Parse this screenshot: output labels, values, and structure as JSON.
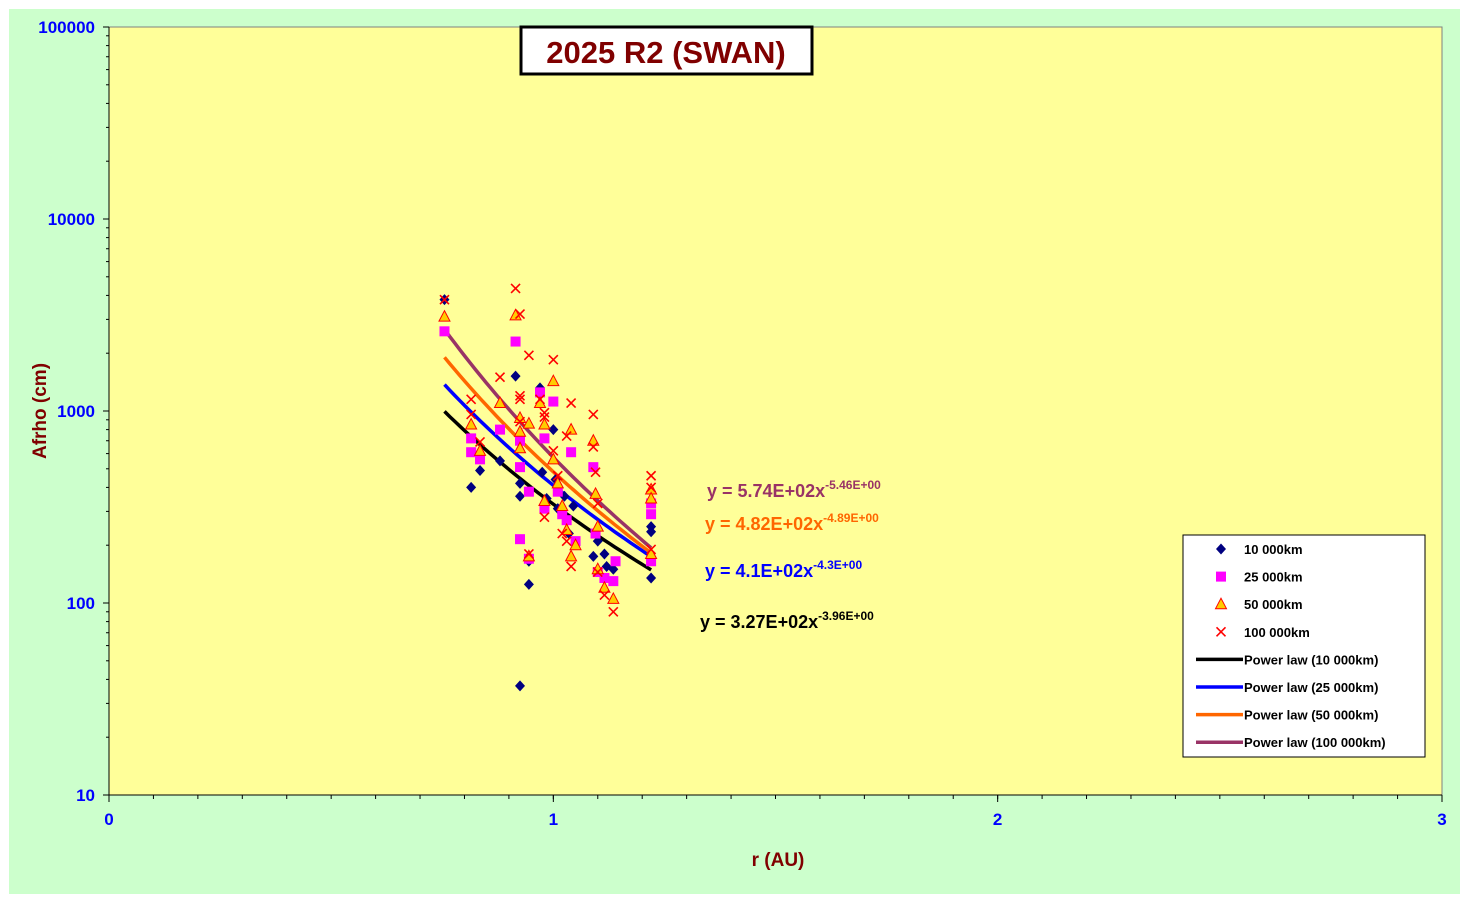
{
  "chart_data": {
    "type": "scatter",
    "title": "2025 R2 (SWAN)",
    "xlabel": "r (AU)",
    "ylabel": "Afrho (cm)",
    "xlim": [
      0,
      3
    ],
    "ylim": [
      10,
      100000
    ],
    "yscale": "log",
    "x_ticks": [
      "0",
      "1",
      "2",
      "3"
    ],
    "y_ticks": [
      "10",
      "100",
      "1000",
      "10000",
      "100000"
    ],
    "grid": false,
    "legend_position": "bottom-right",
    "colors": {
      "page_background": "#ccffcc",
      "plot_background": "#ffff99",
      "title_text": "#800000",
      "axis_label_text": "#800000",
      "tick_label_text": "#0000ff"
    },
    "series": [
      {
        "name": "10 000km",
        "marker": "diamond",
        "color": "#000080",
        "points": [
          [
            0.755,
            3800
          ],
          [
            0.815,
            400
          ],
          [
            0.835,
            490
          ],
          [
            0.88,
            550
          ],
          [
            0.915,
            1520
          ],
          [
            0.925,
            420
          ],
          [
            0.925,
            360
          ],
          [
            0.925,
            37
          ],
          [
            0.945,
            165
          ],
          [
            0.945,
            125
          ],
          [
            0.97,
            1320
          ],
          [
            0.975,
            480
          ],
          [
            0.985,
            350
          ],
          [
            1.0,
            800
          ],
          [
            1.005,
            440
          ],
          [
            1.01,
            310
          ],
          [
            1.025,
            360
          ],
          [
            1.035,
            230
          ],
          [
            1.045,
            320
          ],
          [
            1.09,
            175
          ],
          [
            1.1,
            210
          ],
          [
            1.115,
            180
          ],
          [
            1.12,
            155
          ],
          [
            1.135,
            150
          ],
          [
            1.22,
            250
          ],
          [
            1.22,
            235
          ],
          [
            1.22,
            135
          ]
        ]
      },
      {
        "name": "25 000km",
        "marker": "square",
        "color": "#ff00ff",
        "points": [
          [
            0.755,
            2600
          ],
          [
            0.815,
            720
          ],
          [
            0.815,
            610
          ],
          [
            0.835,
            560
          ],
          [
            0.88,
            800
          ],
          [
            0.915,
            2300
          ],
          [
            0.925,
            700
          ],
          [
            0.925,
            510
          ],
          [
            0.925,
            215
          ],
          [
            0.945,
            380
          ],
          [
            0.945,
            170
          ],
          [
            0.97,
            1250
          ],
          [
            0.98,
            720
          ],
          [
            0.98,
            310
          ],
          [
            1.0,
            1120
          ],
          [
            1.01,
            380
          ],
          [
            1.02,
            290
          ],
          [
            1.03,
            270
          ],
          [
            1.04,
            610
          ],
          [
            1.05,
            210
          ],
          [
            1.09,
            510
          ],
          [
            1.095,
            230
          ],
          [
            1.1,
            145
          ],
          [
            1.115,
            135
          ],
          [
            1.135,
            130
          ],
          [
            1.14,
            165
          ],
          [
            1.22,
            330
          ],
          [
            1.22,
            290
          ],
          [
            1.22,
            165
          ]
        ]
      },
      {
        "name": "50 000km",
        "marker": "triangle",
        "color": "#ffcc00",
        "points": [
          [
            0.755,
            3100
          ],
          [
            0.815,
            850
          ],
          [
            0.835,
            620
          ],
          [
            0.88,
            1100
          ],
          [
            0.915,
            3150
          ],
          [
            0.925,
            920
          ],
          [
            0.925,
            780
          ],
          [
            0.925,
            640
          ],
          [
            0.945,
            860
          ],
          [
            0.945,
            175
          ],
          [
            0.97,
            1100
          ],
          [
            0.98,
            850
          ],
          [
            0.98,
            340
          ],
          [
            1.0,
            1430
          ],
          [
            1.0,
            560
          ],
          [
            1.01,
            420
          ],
          [
            1.02,
            320
          ],
          [
            1.03,
            240
          ],
          [
            1.04,
            800
          ],
          [
            1.04,
            175
          ],
          [
            1.05,
            200
          ],
          [
            1.09,
            700
          ],
          [
            1.095,
            370
          ],
          [
            1.1,
            250
          ],
          [
            1.1,
            150
          ],
          [
            1.115,
            120
          ],
          [
            1.135,
            105
          ],
          [
            1.22,
            390
          ],
          [
            1.22,
            350
          ],
          [
            1.22,
            180
          ]
        ]
      },
      {
        "name": "100 000km",
        "marker": "x",
        "color": "#ff0000",
        "points": [
          [
            0.755,
            3800
          ],
          [
            0.815,
            1150
          ],
          [
            0.815,
            960
          ],
          [
            0.835,
            690
          ],
          [
            0.88,
            1500
          ],
          [
            0.915,
            4350
          ],
          [
            0.925,
            3200
          ],
          [
            0.925,
            1200
          ],
          [
            0.925,
            1150
          ],
          [
            0.925,
            880
          ],
          [
            0.945,
            1950
          ],
          [
            0.945,
            180
          ],
          [
            0.97,
            1150
          ],
          [
            0.98,
            980
          ],
          [
            0.98,
            930
          ],
          [
            0.98,
            280
          ],
          [
            1.0,
            1850
          ],
          [
            1.0,
            620
          ],
          [
            1.01,
            460
          ],
          [
            1.02,
            230
          ],
          [
            1.03,
            740
          ],
          [
            1.03,
            210
          ],
          [
            1.04,
            1100
          ],
          [
            1.04,
            155
          ],
          [
            1.09,
            960
          ],
          [
            1.09,
            650
          ],
          [
            1.095,
            480
          ],
          [
            1.1,
            330
          ],
          [
            1.1,
            145
          ],
          [
            1.115,
            110
          ],
          [
            1.135,
            90
          ],
          [
            1.22,
            460
          ],
          [
            1.22,
            400
          ],
          [
            1.22,
            190
          ]
        ]
      }
    ],
    "fits": [
      {
        "name": "Power law (10 000km)",
        "color": "#000000",
        "a": 327,
        "b": -3.96,
        "x_range": [
          0.755,
          1.22
        ],
        "equation_mantissa": "y = 3.27E+02x",
        "equation_exponent": "-3.96E+00"
      },
      {
        "name": "Power law (25 000km)",
        "color": "#0000ff",
        "a": 410,
        "b": -4.3,
        "x_range": [
          0.755,
          1.22
        ],
        "equation_mantissa": "y = 4.1E+02x",
        "equation_exponent": "-4.3E+00"
      },
      {
        "name": "Power law (50 000km)",
        "color": "#ff6600",
        "a": 482,
        "b": -4.89,
        "x_range": [
          0.755,
          1.22
        ],
        "equation_mantissa": "y = 4.82E+02x",
        "equation_exponent": "-4.89E+00"
      },
      {
        "name": "Power law (100 000km)",
        "color": "#993366",
        "a": 574,
        "b": -5.46,
        "x_range": [
          0.755,
          1.22
        ],
        "equation_mantissa": "y = 5.74E+02x",
        "equation_exponent": "-5.46E+00"
      }
    ]
  }
}
